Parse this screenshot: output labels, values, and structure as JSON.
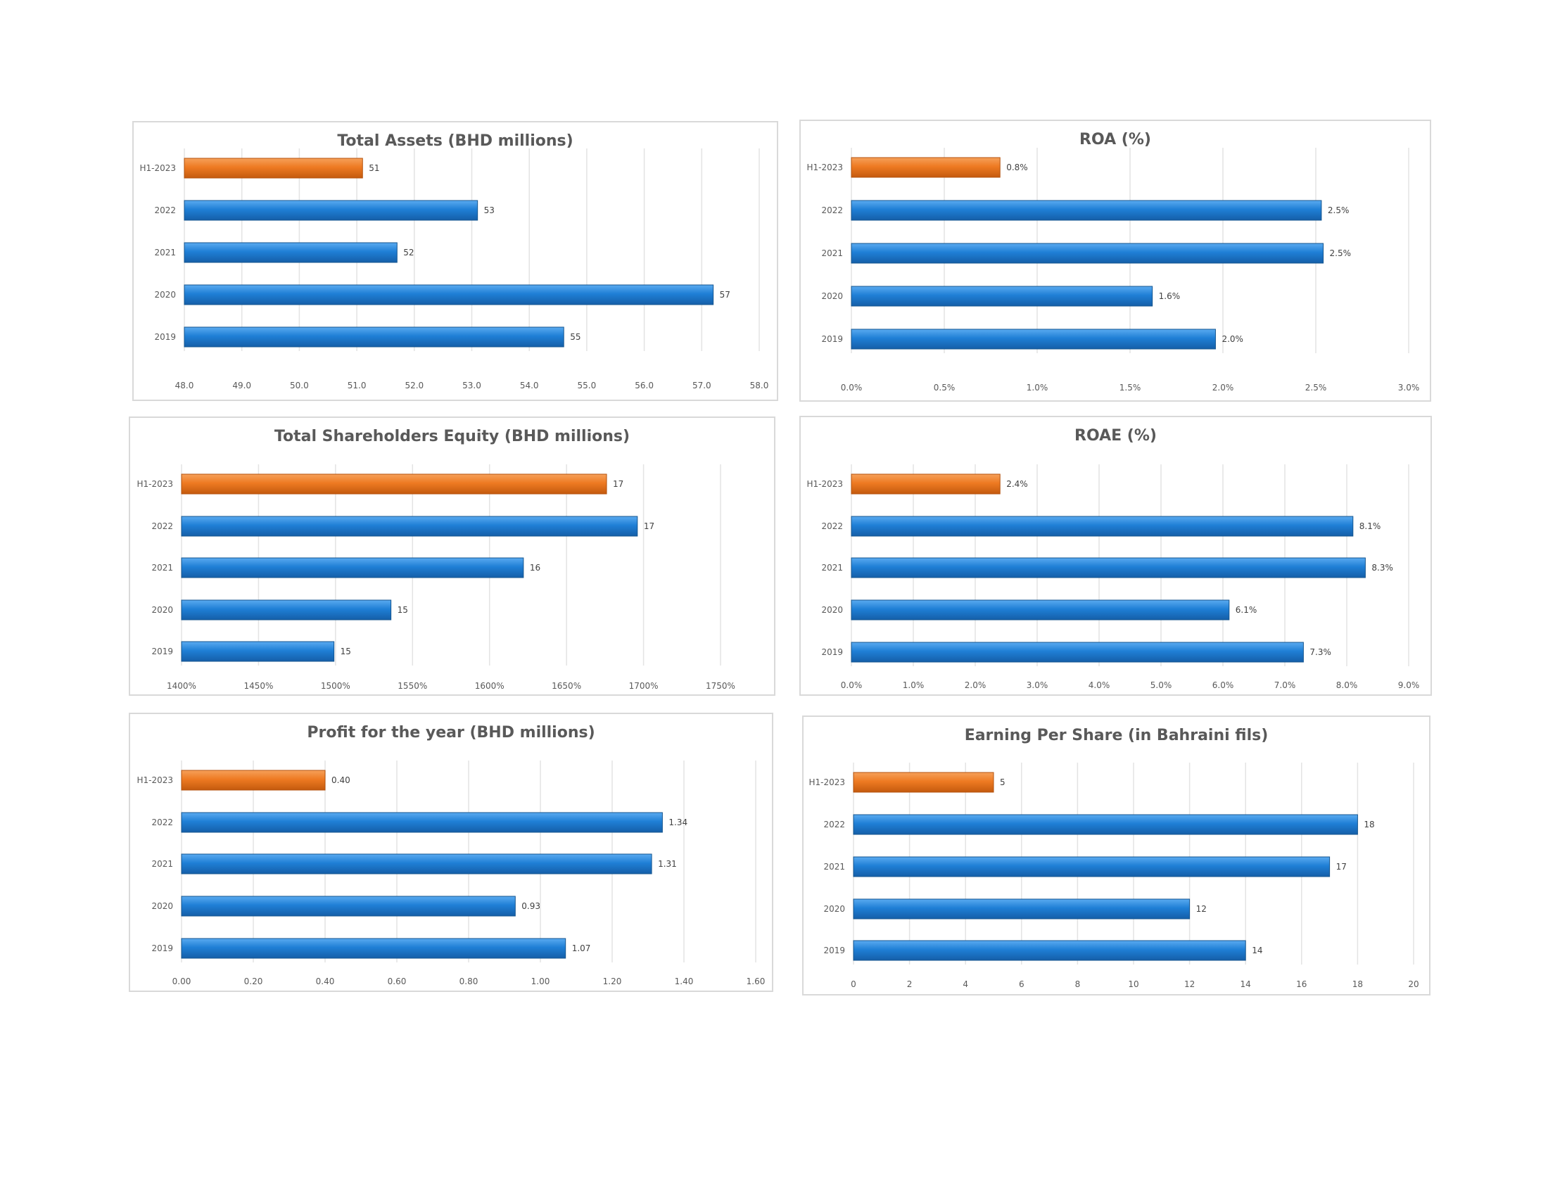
{
  "colors": {
    "current": "#ED7D31",
    "prior": "#2E87D8",
    "grid": "#e3e3e3",
    "text": "#595959"
  },
  "chart_data": [
    {
      "type": "bar",
      "orientation": "horizontal",
      "title": "Total Assets (BHD millions)",
      "categories": [
        "H1-2023",
        "2022",
        "2021",
        "2020",
        "2019"
      ],
      "values": [
        51.1,
        53.1,
        51.7,
        57.2,
        54.6
      ],
      "value_labels": [
        "51",
        "53",
        "52",
        "57",
        "55"
      ],
      "xlim": [
        48,
        58
      ],
      "ticks": [
        "48.0",
        "49.0",
        "50.0",
        "51.0",
        "52.0",
        "53.0",
        "54.0",
        "55.0",
        "56.0",
        "57.0",
        "58.0"
      ],
      "grid": true
    },
    {
      "type": "bar",
      "orientation": "horizontal",
      "title": "ROA (%)",
      "categories": [
        "H1-2023",
        "2022",
        "2021",
        "2020",
        "2019"
      ],
      "values": [
        0.8,
        2.53,
        2.54,
        1.62,
        1.96
      ],
      "value_labels": [
        "0.8%",
        "2.5%",
        "2.5%",
        "1.6%",
        "2.0%"
      ],
      "xlim": [
        0,
        3
      ],
      "ticks": [
        "0.0%",
        "0.5%",
        "1.0%",
        "1.5%",
        "2.0%",
        "2.5%",
        "3.0%"
      ],
      "grid": true
    },
    {
      "type": "bar",
      "orientation": "horizontal",
      "title": "Total Shareholders Equity (BHD millions)",
      "categories": [
        "H1-2023",
        "2022",
        "2021",
        "2020",
        "2019"
      ],
      "values": [
        1676,
        1696,
        1622,
        1536,
        1499
      ],
      "value_labels": [
        "17",
        "17",
        "16",
        "15",
        "15"
      ],
      "xlim": [
        1400,
        1750
      ],
      "ticks": [
        "1400%",
        "1450%",
        "1500%",
        "1550%",
        "1600%",
        "1650%",
        "1700%",
        "1750%"
      ],
      "grid": true
    },
    {
      "type": "bar",
      "orientation": "horizontal",
      "title": "ROAE (%)",
      "categories": [
        "H1-2023",
        "2022",
        "2021",
        "2020",
        "2019"
      ],
      "values": [
        2.4,
        8.1,
        8.3,
        6.1,
        7.3
      ],
      "value_labels": [
        "2.4%",
        "8.1%",
        "8.3%",
        "6.1%",
        "7.3%"
      ],
      "xlim": [
        0,
        9
      ],
      "ticks": [
        "0.0%",
        "1.0%",
        "2.0%",
        "3.0%",
        "4.0%",
        "5.0%",
        "6.0%",
        "7.0%",
        "8.0%",
        "9.0%"
      ],
      "grid": true
    },
    {
      "type": "bar",
      "orientation": "horizontal",
      "title": "Profit for the year (BHD millions)",
      "categories": [
        "H1-2023",
        "2022",
        "2021",
        "2020",
        "2019"
      ],
      "values": [
        0.4,
        1.34,
        1.31,
        0.93,
        1.07
      ],
      "value_labels": [
        "0.40",
        "1.34",
        "1.31",
        "0.93",
        "1.07"
      ],
      "xlim": [
        0,
        1.6
      ],
      "ticks": [
        "0.00",
        "0.20",
        "0.40",
        "0.60",
        "0.80",
        "1.00",
        "1.20",
        "1.40",
        "1.60"
      ],
      "grid": true
    },
    {
      "type": "bar",
      "orientation": "horizontal",
      "title": "Earning Per Share (in Bahraini fils)",
      "categories": [
        "H1-2023",
        "2022",
        "2021",
        "2020",
        "2019"
      ],
      "values": [
        5,
        18,
        17,
        12,
        14
      ],
      "value_labels": [
        "5",
        "18",
        "17",
        "12",
        "14"
      ],
      "xlim": [
        0,
        20
      ],
      "ticks": [
        "0",
        "2",
        "4",
        "6",
        "8",
        "10",
        "12",
        "14",
        "16",
        "18",
        "20"
      ],
      "grid": true
    }
  ]
}
